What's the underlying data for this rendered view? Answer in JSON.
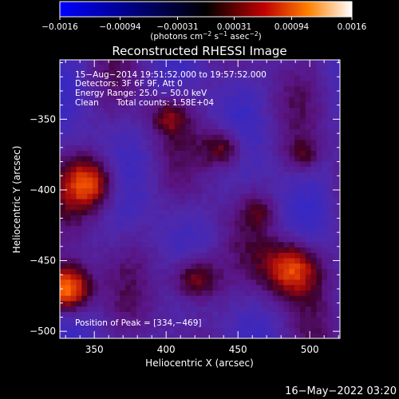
{
  "colorbar": {
    "ticks": [
      "−0.0016",
      "−0.00094",
      "−0.00031",
      "0.00031",
      "0.00094",
      "0.0016"
    ],
    "tick_values": [
      -0.0016,
      -0.00094,
      -0.00031,
      0.00031,
      0.00094,
      0.0016
    ],
    "range": [
      -0.0016,
      0.0016
    ],
    "unit": "(photons cm",
    "unit_exp1": "−2",
    "unit_mid": " s",
    "unit_exp2": "−1",
    "unit_end": " asec",
    "unit_exp3": "−2",
    "unit_close": ")",
    "colormap_stops": [
      "#0000ff",
      "#000000",
      "#c00000",
      "#ff8000",
      "#ffffff"
    ]
  },
  "chart_data": {
    "type": "heatmap",
    "title": "Reconstructed RHESSI Image",
    "xlabel": "Heliocentric X (arcsec)",
    "ylabel": "Heliocentric Y (arcsec)",
    "xlim": [
      326,
      521
    ],
    "ylim": [
      -505,
      -308
    ],
    "x_ticks": [
      "350",
      "400",
      "450",
      "500"
    ],
    "x_tick_values": [
      350,
      400,
      450,
      500
    ],
    "y_ticks": [
      "−350",
      "−400",
      "−450",
      "−500"
    ],
    "y_tick_values": [
      -350,
      -400,
      -450,
      -500
    ],
    "annotations": {
      "time": "15−Aug−2014 19:51:52.000 to 19:57:52.000",
      "detectors": "Detectors: 3F 6F 9F, Att 0",
      "energy": "Energy Range: 25.0 − 50.0 keV",
      "method": "Clean",
      "counts": "Total counts: 1.58E+04",
      "peak": "Position of Peak = [334,−469]"
    },
    "sources": [
      {
        "x": 331,
        "y": -470,
        "peak": 0.0016,
        "sigma": 12
      },
      {
        "x": 488,
        "y": -455,
        "peak": 0.0012,
        "sigma": 14
      },
      {
        "x": 347,
        "y": -395,
        "peak": 0.0011,
        "sigma": 13
      },
      {
        "x": 420,
        "y": -462,
        "peak": 0.001,
        "sigma": 12
      },
      {
        "x": 440,
        "y": -370,
        "peak": 0.0008,
        "sigma": 10
      },
      {
        "x": 402,
        "y": -348,
        "peak": 0.0006,
        "sigma": 9
      },
      {
        "x": 495,
        "y": -375,
        "peak": 0.0005,
        "sigma": 8
      },
      {
        "x": 465,
        "y": -415,
        "peak": 0.0004,
        "sigma": 8
      }
    ]
  },
  "footer": {
    "timestamp": "16−May−2022 03:20"
  }
}
